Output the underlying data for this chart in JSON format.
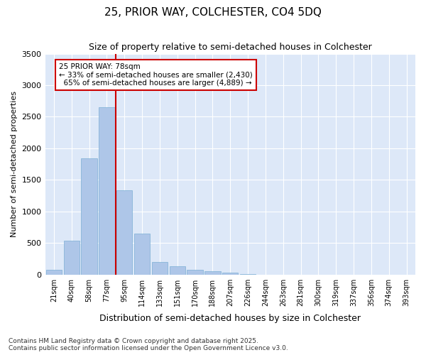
{
  "title": "25, PRIOR WAY, COLCHESTER, CO4 5DQ",
  "subtitle": "Size of property relative to semi-detached houses in Colchester",
  "xlabel": "Distribution of semi-detached houses by size in Colchester",
  "ylabel": "Number of semi-detached properties",
  "categories": [
    "21sqm",
    "40sqm",
    "58sqm",
    "77sqm",
    "95sqm",
    "114sqm",
    "133sqm",
    "151sqm",
    "170sqm",
    "188sqm",
    "207sqm",
    "226sqm",
    "244sqm",
    "263sqm",
    "281sqm",
    "300sqm",
    "319sqm",
    "337sqm",
    "356sqm",
    "374sqm",
    "393sqm"
  ],
  "values": [
    80,
    540,
    1840,
    2650,
    1330,
    650,
    200,
    130,
    80,
    50,
    30,
    10,
    0,
    0,
    0,
    0,
    0,
    0,
    0,
    0,
    0
  ],
  "bar_color": "#aec6e8",
  "bar_edge_color": "#7bafd4",
  "property_label": "25 PRIOR WAY: 78sqm",
  "pct_smaller": 33,
  "pct_larger": 65,
  "count_smaller": 2430,
  "count_larger": 4889,
  "vline_x_index": 3,
  "vline_color": "#cc0000",
  "ylim": [
    0,
    3500
  ],
  "yticks": [
    0,
    500,
    1000,
    1500,
    2000,
    2500,
    3000,
    3500
  ],
  "background_color": "#dde8f8",
  "footer_line1": "Contains HM Land Registry data © Crown copyright and database right 2025.",
  "footer_line2": "Contains public sector information licensed under the Open Government Licence v3.0."
}
